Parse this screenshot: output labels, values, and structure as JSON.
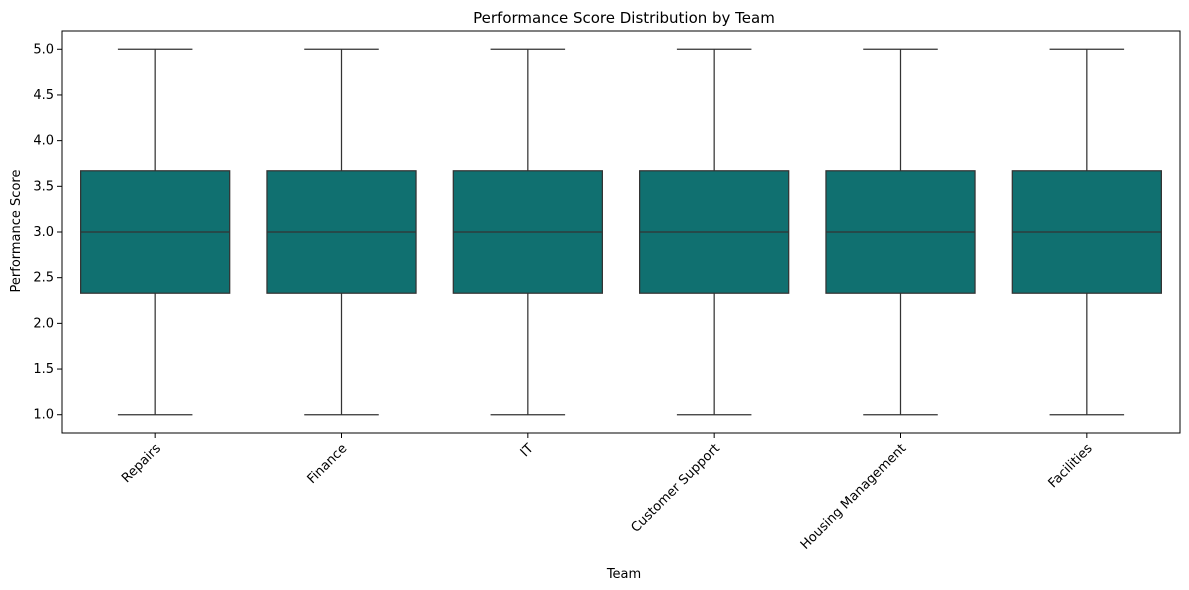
{
  "chart_data": {
    "type": "box",
    "title": "Performance Score Distribution by Team",
    "xlabel": "Team",
    "ylabel": "Performance Score",
    "ylim": [
      0.8,
      5.2
    ],
    "yticks": [
      1.0,
      1.5,
      2.0,
      2.5,
      3.0,
      3.5,
      4.0,
      4.5,
      5.0
    ],
    "ytick_labels": [
      "1.0",
      "1.5",
      "2.0",
      "2.5",
      "3.0",
      "3.5",
      "4.0",
      "4.5",
      "5.0"
    ],
    "categories": [
      "Repairs",
      "Finance",
      "IT",
      "Customer Support",
      "Housing Management",
      "Facilities"
    ],
    "boxes": [
      {
        "category": "Repairs",
        "min": 1.0,
        "q1": 2.33,
        "median": 3.0,
        "q3": 3.67,
        "max": 5.0
      },
      {
        "category": "Finance",
        "min": 1.0,
        "q1": 2.33,
        "median": 3.0,
        "q3": 3.67,
        "max": 5.0
      },
      {
        "category": "IT",
        "min": 1.0,
        "q1": 2.33,
        "median": 3.0,
        "q3": 3.67,
        "max": 5.0
      },
      {
        "category": "Customer Support",
        "min": 1.0,
        "q1": 2.33,
        "median": 3.0,
        "q3": 3.67,
        "max": 5.0
      },
      {
        "category": "Housing Management",
        "min": 1.0,
        "q1": 2.33,
        "median": 3.0,
        "q3": 3.67,
        "max": 5.0
      },
      {
        "category": "Facilities",
        "min": 1.0,
        "q1": 2.33,
        "median": 3.0,
        "q3": 3.67,
        "max": 5.0
      }
    ],
    "grid": false,
    "legend": "none",
    "colors": {
      "box_fill": "#107070",
      "line": "#333333",
      "axis": "#000000"
    }
  }
}
